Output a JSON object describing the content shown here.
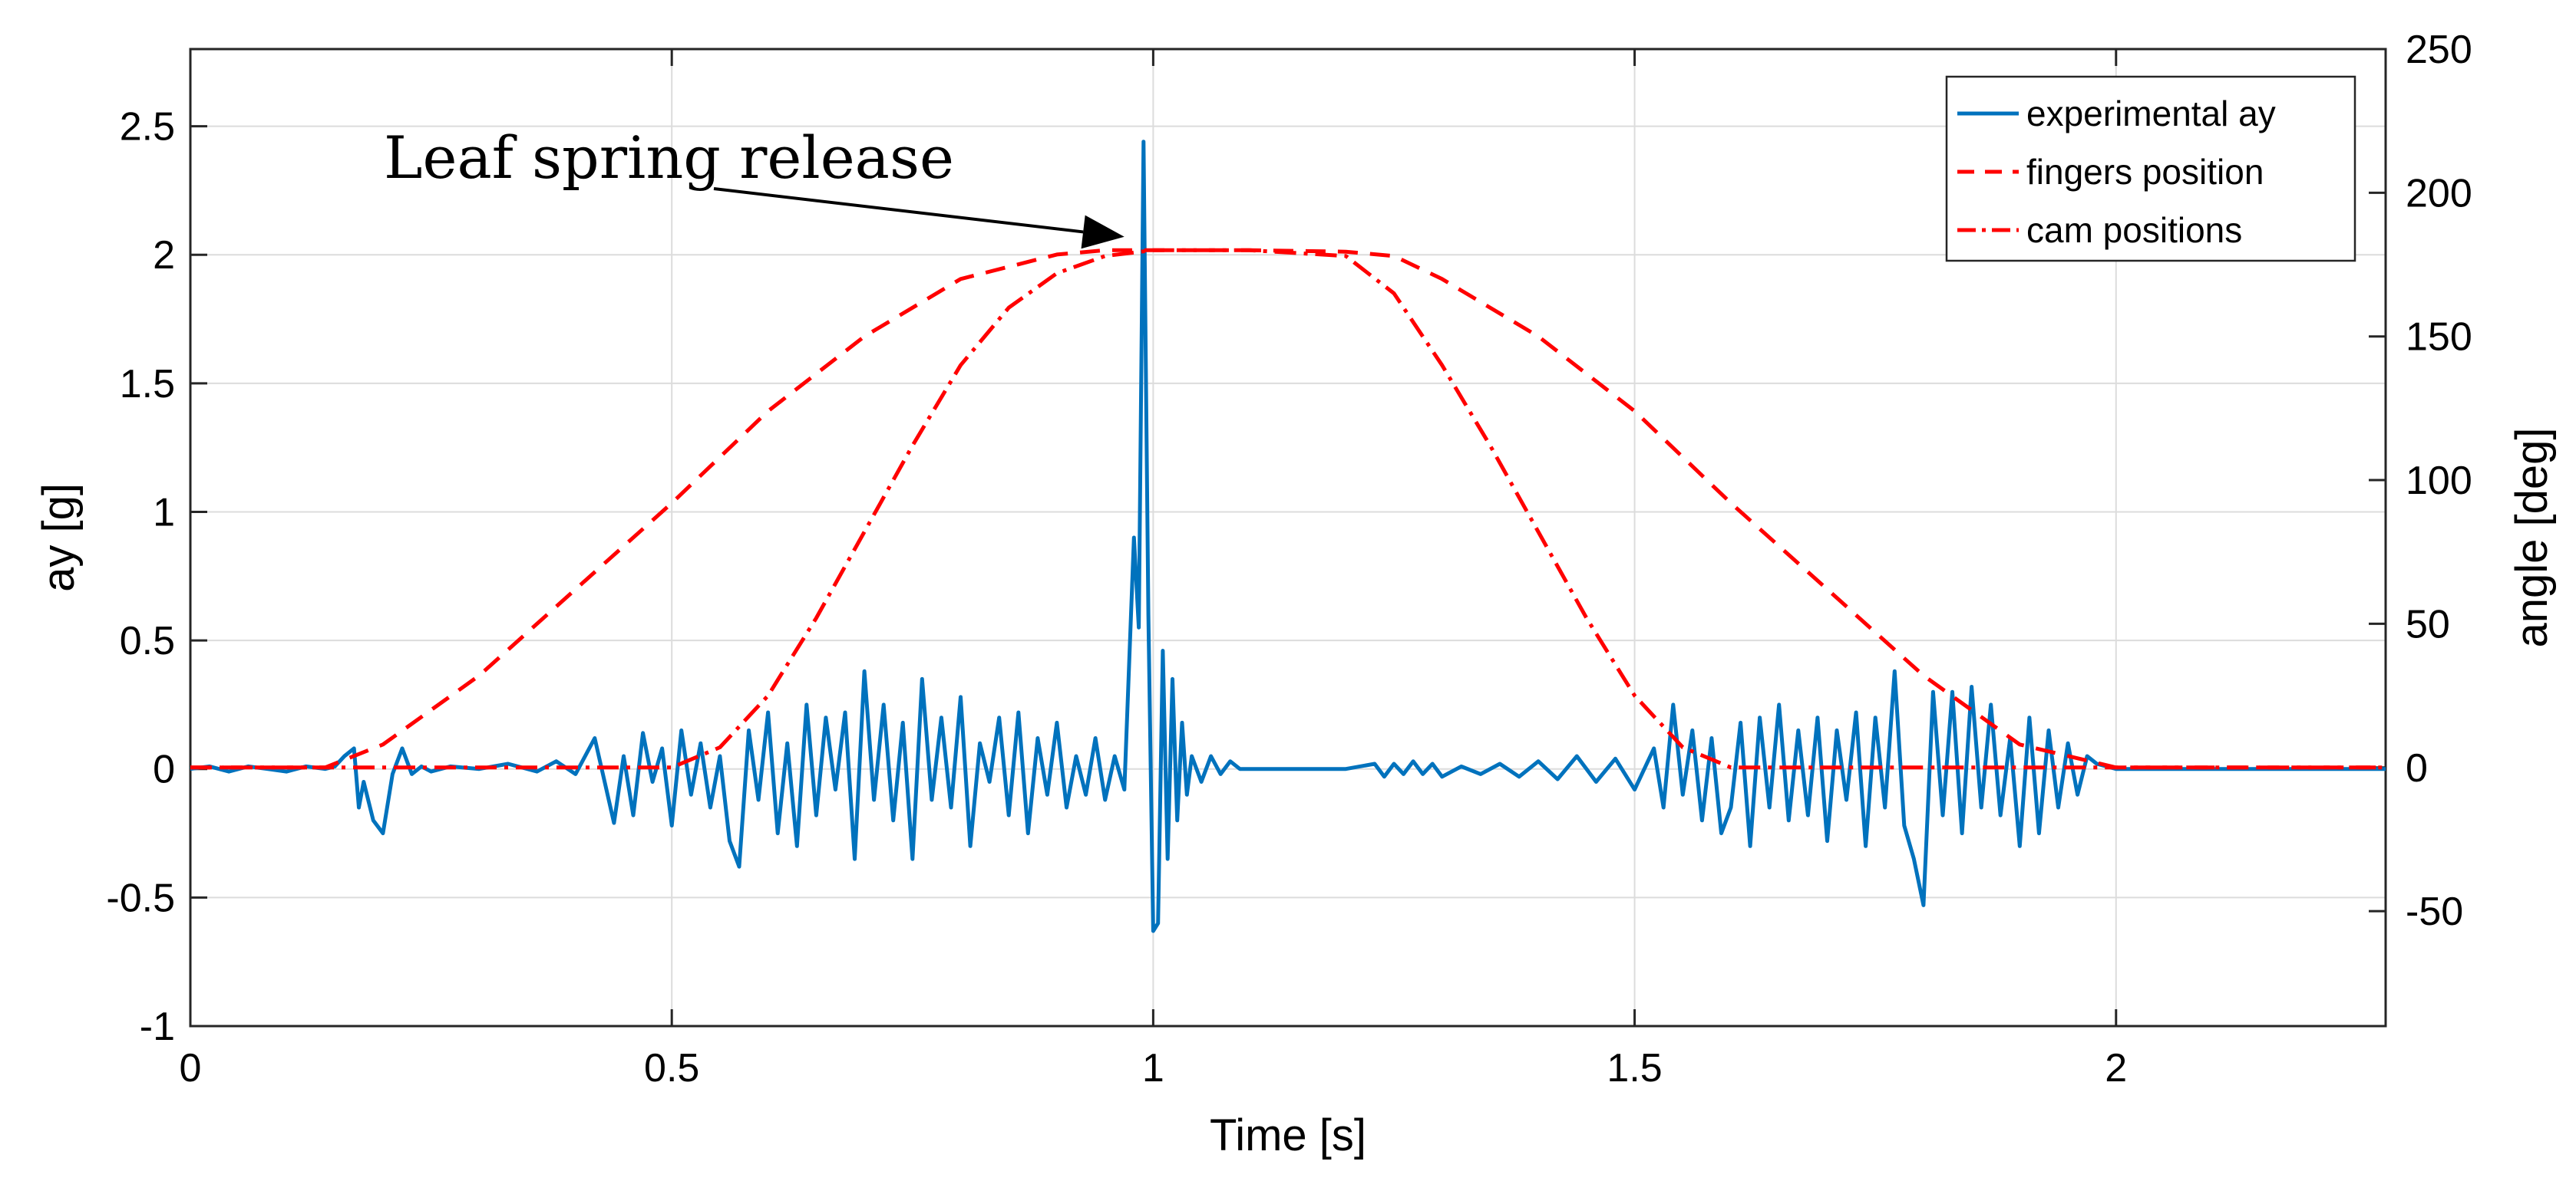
{
  "chart_data": {
    "type": "line",
    "title": "",
    "xlabel": "Time [s]",
    "ylabel": "ay [g]",
    "y2label": "angle [deg]",
    "xlim": [
      0,
      2.28
    ],
    "ylim": [
      -1,
      2.8
    ],
    "y2lim": [
      -90,
      250
    ],
    "grid": true,
    "x_ticks": [
      0,
      0.5,
      1,
      1.5,
      2
    ],
    "x_tick_labels": [
      "0",
      "0.5",
      "1",
      "1.5",
      "2"
    ],
    "y_ticks": [
      -1,
      -0.5,
      0,
      0.5,
      1,
      1.5,
      2,
      2.5
    ],
    "y_tick_labels": [
      "-1",
      "-0.5",
      "0",
      "0.5",
      "1",
      "1.5",
      "2",
      "2.5"
    ],
    "y2_ticks": [
      -50,
      0,
      50,
      100,
      150,
      200,
      250
    ],
    "y2_tick_labels": [
      "-50",
      "0",
      "50",
      "100",
      "150",
      "200",
      "250"
    ],
    "annotation": {
      "text": "Leaf spring release",
      "target": [
        0.97,
        2.07
      ]
    },
    "legend": {
      "position": "top-right"
    },
    "series": [
      {
        "name": "experimental ay",
        "axis": "left",
        "color": "#0072BD",
        "style": "solid",
        "x": [
          0,
          0.02,
          0.04,
          0.06,
          0.08,
          0.1,
          0.12,
          0.14,
          0.15,
          0.16,
          0.17,
          0.175,
          0.18,
          0.19,
          0.2,
          0.21,
          0.22,
          0.23,
          0.24,
          0.25,
          0.27,
          0.3,
          0.33,
          0.36,
          0.38,
          0.4,
          0.42,
          0.44,
          0.45,
          0.46,
          0.47,
          0.48,
          0.49,
          0.5,
          0.51,
          0.52,
          0.53,
          0.54,
          0.55,
          0.56,
          0.57,
          0.58,
          0.59,
          0.6,
          0.61,
          0.62,
          0.63,
          0.64,
          0.65,
          0.66,
          0.67,
          0.68,
          0.69,
          0.7,
          0.71,
          0.72,
          0.73,
          0.74,
          0.75,
          0.76,
          0.77,
          0.78,
          0.79,
          0.8,
          0.81,
          0.82,
          0.83,
          0.84,
          0.85,
          0.86,
          0.87,
          0.88,
          0.89,
          0.9,
          0.91,
          0.92,
          0.93,
          0.94,
          0.95,
          0.96,
          0.97,
          0.98,
          0.985,
          0.99,
          0.995,
          1.0,
          1.005,
          1.01,
          1.015,
          1.02,
          1.025,
          1.03,
          1.035,
          1.04,
          1.05,
          1.06,
          1.07,
          1.08,
          1.09,
          1.1,
          1.2,
          1.23,
          1.24,
          1.25,
          1.26,
          1.27,
          1.28,
          1.29,
          1.3,
          1.32,
          1.34,
          1.36,
          1.38,
          1.4,
          1.42,
          1.44,
          1.46,
          1.48,
          1.5,
          1.52,
          1.53,
          1.54,
          1.55,
          1.56,
          1.57,
          1.58,
          1.59,
          1.6,
          1.61,
          1.62,
          1.63,
          1.64,
          1.65,
          1.66,
          1.67,
          1.68,
          1.69,
          1.7,
          1.71,
          1.72,
          1.73,
          1.74,
          1.75,
          1.76,
          1.77,
          1.78,
          1.79,
          1.8,
          1.81,
          1.82,
          1.83,
          1.84,
          1.85,
          1.86,
          1.87,
          1.88,
          1.89,
          1.9,
          1.91,
          1.92,
          1.93,
          1.94,
          1.95,
          1.96,
          1.97,
          1.98,
          2.0,
          2.28
        ],
        "y": [
          0,
          0.01,
          -0.01,
          0.01,
          0,
          -0.01,
          0.01,
          0,
          0.01,
          0.05,
          0.08,
          -0.15,
          -0.05,
          -0.2,
          -0.25,
          -0.02,
          0.08,
          -0.02,
          0.01,
          -0.01,
          0.01,
          0,
          0.02,
          -0.01,
          0.03,
          -0.02,
          0.12,
          -0.21,
          0.05,
          -0.18,
          0.14,
          -0.05,
          0.08,
          -0.22,
          0.15,
          -0.1,
          0.1,
          -0.15,
          0.05,
          -0.28,
          -0.38,
          0.15,
          -0.12,
          0.22,
          -0.25,
          0.1,
          -0.3,
          0.25,
          -0.18,
          0.2,
          -0.08,
          0.22,
          -0.35,
          0.38,
          -0.12,
          0.25,
          -0.2,
          0.18,
          -0.35,
          0.35,
          -0.12,
          0.2,
          -0.15,
          0.28,
          -0.3,
          0.1,
          -0.05,
          0.2,
          -0.18,
          0.22,
          -0.25,
          0.12,
          -0.1,
          0.18,
          -0.15,
          0.05,
          -0.1,
          0.12,
          -0.12,
          0.05,
          -0.08,
          0.9,
          0.55,
          2.44,
          0.6,
          -0.63,
          -0.6,
          0.46,
          -0.35,
          0.35,
          -0.2,
          0.18,
          -0.1,
          0.05,
          -0.05,
          0.05,
          -0.02,
          0.03,
          0,
          0,
          0,
          0.02,
          -0.03,
          0.02,
          -0.02,
          0.03,
          -0.02,
          0.02,
          -0.03,
          0.01,
          -0.02,
          0.02,
          -0.03,
          0.03,
          -0.04,
          0.05,
          -0.05,
          0.04,
          -0.08,
          0.08,
          -0.15,
          0.25,
          -0.1,
          0.15,
          -0.2,
          0.12,
          -0.25,
          -0.15,
          0.18,
          -0.3,
          0.2,
          -0.15,
          0.25,
          -0.2,
          0.15,
          -0.18,
          0.2,
          -0.28,
          0.15,
          -0.12,
          0.22,
          -0.3,
          0.2,
          -0.15,
          0.38,
          -0.22,
          -0.35,
          -0.53,
          0.3,
          -0.18,
          0.3,
          -0.25,
          0.32,
          -0.15,
          0.25,
          -0.18,
          0.12,
          -0.3,
          0.2,
          -0.25,
          0.15,
          -0.15,
          0.1,
          -0.1,
          0.05,
          0.02,
          0,
          0
        ]
      },
      {
        "name": "fingers position",
        "axis": "right",
        "color": "#FF0000",
        "style": "dashed",
        "x": [
          0,
          0.14,
          0.2,
          0.3,
          0.4,
          0.5,
          0.6,
          0.7,
          0.8,
          0.9,
          0.95,
          1.0,
          1.1,
          1.2,
          1.25,
          1.3,
          1.4,
          1.5,
          1.6,
          1.7,
          1.8,
          1.9,
          2.0,
          2.28
        ],
        "y": [
          0,
          0,
          8,
          32,
          62,
          92,
          124,
          150,
          170,
          178.5,
          180,
          180,
          180,
          179.5,
          178,
          170,
          150,
          124,
          92,
          62,
          32,
          8,
          0,
          0
        ]
      },
      {
        "name": "cam positions",
        "axis": "right",
        "color": "#FF0000",
        "style": "dashdot",
        "x": [
          0,
          0.5,
          0.55,
          0.6,
          0.65,
          0.7,
          0.75,
          0.8,
          0.85,
          0.9,
          0.95,
          1.0,
          1.1,
          1.2,
          1.25,
          1.3,
          1.35,
          1.4,
          1.45,
          1.5,
          1.55,
          1.6,
          1.65,
          1.7,
          2.28
        ],
        "y": [
          0,
          0,
          7,
          25,
          52,
          82,
          112,
          140,
          160,
          172,
          178,
          180,
          180,
          178,
          165,
          140,
          112,
          82,
          52,
          25,
          7,
          0,
          0,
          0,
          0
        ]
      }
    ]
  }
}
